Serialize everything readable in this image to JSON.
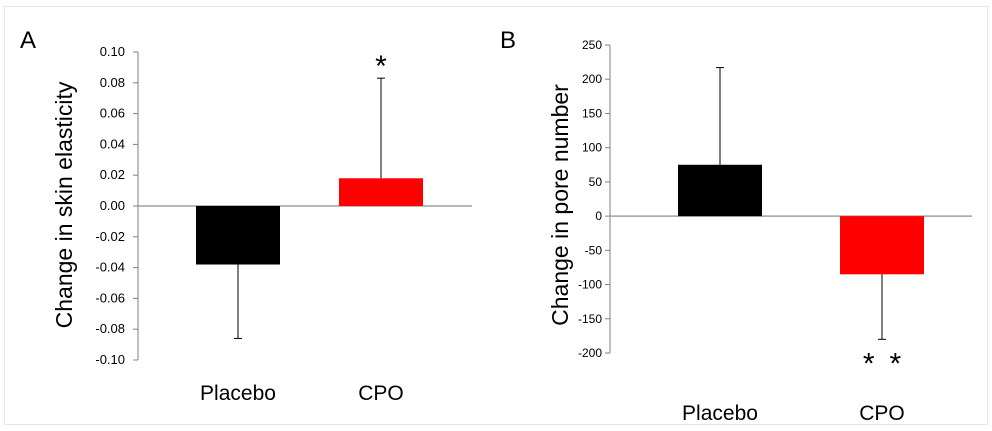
{
  "chart_data": [
    {
      "type": "bar",
      "panel_label": "A",
      "categories": [
        "Placebo",
        "CPO"
      ],
      "values": [
        -0.038,
        0.018
      ],
      "error": [
        0.048,
        0.065
      ],
      "error_direction": [
        "down",
        "up"
      ],
      "colors": [
        "#000000",
        "#ff0000"
      ],
      "significance": [
        "",
        "*"
      ],
      "ylabel": "Change in skin elasticity",
      "ylim": [
        -0.1,
        0.1
      ],
      "yticks": [
        0.1,
        0.08,
        0.06,
        0.04,
        0.02,
        0.0,
        -0.02,
        -0.04,
        -0.06,
        -0.08,
        -0.1
      ],
      "ytick_labels": [
        "0.10",
        "0.08",
        "0.06",
        "0.04",
        "0.02",
        "0.00",
        "-0.02",
        "-0.04",
        "-0.06",
        "-0.08",
        "-0.10"
      ],
      "grid": false,
      "legend": "none"
    },
    {
      "type": "bar",
      "panel_label": "B",
      "categories": [
        "Placebo",
        "CPO"
      ],
      "values": [
        75,
        -85
      ],
      "error": [
        142,
        95
      ],
      "error_direction": [
        "up",
        "down"
      ],
      "colors": [
        "#000000",
        "#ff0000"
      ],
      "significance": [
        "",
        "* *"
      ],
      "ylabel": "Change in pore number",
      "ylim": [
        -200,
        250
      ],
      "yticks": [
        250,
        200,
        150,
        100,
        50,
        0,
        -50,
        -100,
        -150,
        -200
      ],
      "ytick_labels": [
        "250",
        "200",
        "150",
        "100",
        "50",
        "0",
        "-50",
        "-100",
        "-150",
        "-200"
      ],
      "grid": false,
      "legend": "none"
    }
  ]
}
